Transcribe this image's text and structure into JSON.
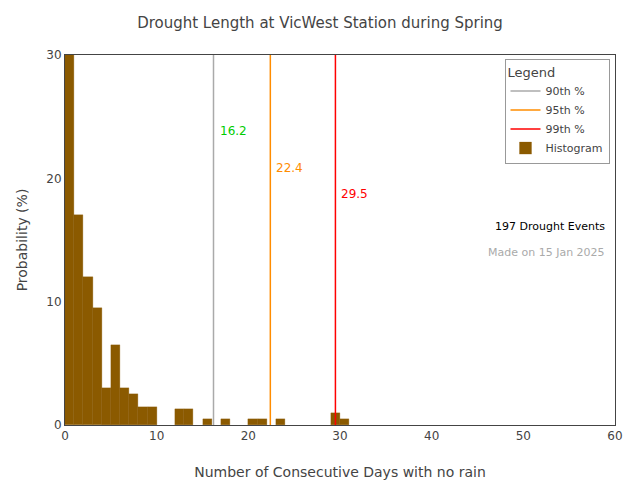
{
  "chart_data": {
    "type": "histogram",
    "title": "Drought Length at VicWest Station during Spring",
    "x_label": "Number of Consecutive Days with no rain",
    "y_label": "Probability (%)",
    "bins": [
      0,
      1,
      2,
      3,
      4,
      5,
      6,
      7,
      8,
      9,
      10,
      11,
      12,
      13,
      14,
      15,
      16,
      17,
      18,
      19,
      20,
      21,
      22,
      23,
      24,
      25,
      26,
      27,
      28,
      29,
      30,
      31,
      32,
      33,
      34,
      35,
      36,
      37,
      38,
      39,
      40,
      41,
      42,
      43,
      44,
      45,
      46,
      47,
      48,
      49,
      50,
      51,
      52,
      53,
      54,
      55,
      56,
      57,
      58,
      59,
      60
    ],
    "values": [
      30.0,
      17.0,
      12.0,
      9.5,
      3.0,
      6.5,
      3.0,
      2.5,
      1.5,
      1.5,
      0.0,
      0.0,
      1.3,
      1.3,
      0.0,
      0.5,
      0.0,
      0.5,
      0.0,
      0.0,
      0.5,
      0.5,
      0.0,
      0.5,
      0.0,
      0.0,
      0.0,
      0.0,
      0.0,
      1.0,
      0.5,
      0.0,
      0.0,
      0.0,
      0.0,
      0.0,
      0.0,
      0.0,
      0.0,
      0.0,
      0.0,
      0.0,
      0.0,
      0.0,
      0.0,
      0.0,
      0.0,
      0.0,
      0.0,
      0.0,
      0.0,
      0.0,
      0.0,
      0.0,
      0.0,
      0.0,
      0.0,
      0.0,
      0.0,
      0.0
    ],
    "name": "Histogram",
    "color": "#8B5A00",
    "xlim": [
      0,
      60
    ],
    "ylim": [
      0,
      30
    ],
    "xticks": [
      0,
      10,
      20,
      30,
      40,
      50,
      60
    ],
    "yticks": [
      0,
      10,
      20,
      30
    ],
    "grid": false,
    "legend": "upper right",
    "legend_title": "Legend",
    "lines": [
      {
        "name": "90th %",
        "x": 16.2,
        "color": "#aaaaaa",
        "label_color": "#00CC00",
        "data_labels": true
      },
      {
        "name": "95th %",
        "x": 22.4,
        "color": "#FF8C00",
        "label_color": "#FF8C00",
        "data_labels": true
      },
      {
        "name": "99th %",
        "x": 29.5,
        "color": "#FF0000",
        "label_color": "#FF0000",
        "data_labels": true
      }
    ],
    "annotations": [
      {
        "text": "197 Drought Events",
        "color": "#000000"
      },
      {
        "text": "Made on 15 Jan 2025",
        "color": "#aaaaaa"
      }
    ]
  }
}
